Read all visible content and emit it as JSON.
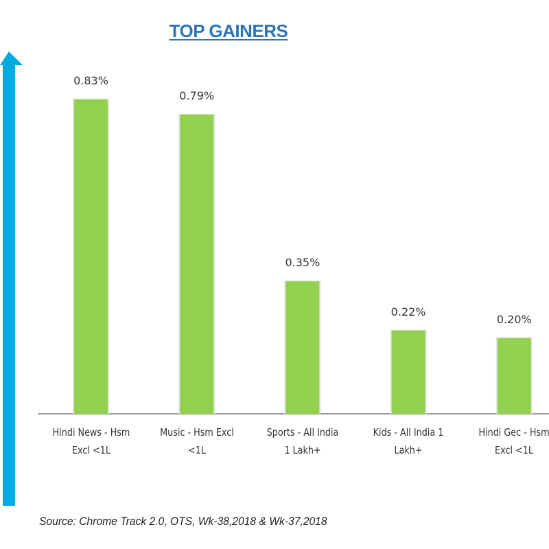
{
  "chart_data": {
    "type": "bar",
    "title": "TOP GAINERS",
    "categories": [
      [
        "Hindi News - Hsm",
        "Excl <1L"
      ],
      [
        "Music - Hsm Excl",
        "<1L"
      ],
      [
        "Sports - All India",
        "1 Lakh+"
      ],
      [
        "Kids - All India 1",
        "Lakh+"
      ],
      [
        "Hindi Gec - Hsm",
        "Excl <1L"
      ]
    ],
    "values": [
      0.83,
      0.79,
      0.35,
      0.22,
      0.2
    ],
    "data_labels": [
      "0.83%",
      "0.79%",
      "0.35%",
      "0.22%",
      "0.20%"
    ],
    "unit": "%",
    "ylim": [
      0,
      0.9
    ],
    "grid": false,
    "bar_color": "#92d050",
    "arrow_color": "#00a9e0",
    "title_color": "#2e75b6"
  },
  "source": "Source: Chrome Track 2.0, OTS, Wk-38,2018 & Wk-37,2018"
}
